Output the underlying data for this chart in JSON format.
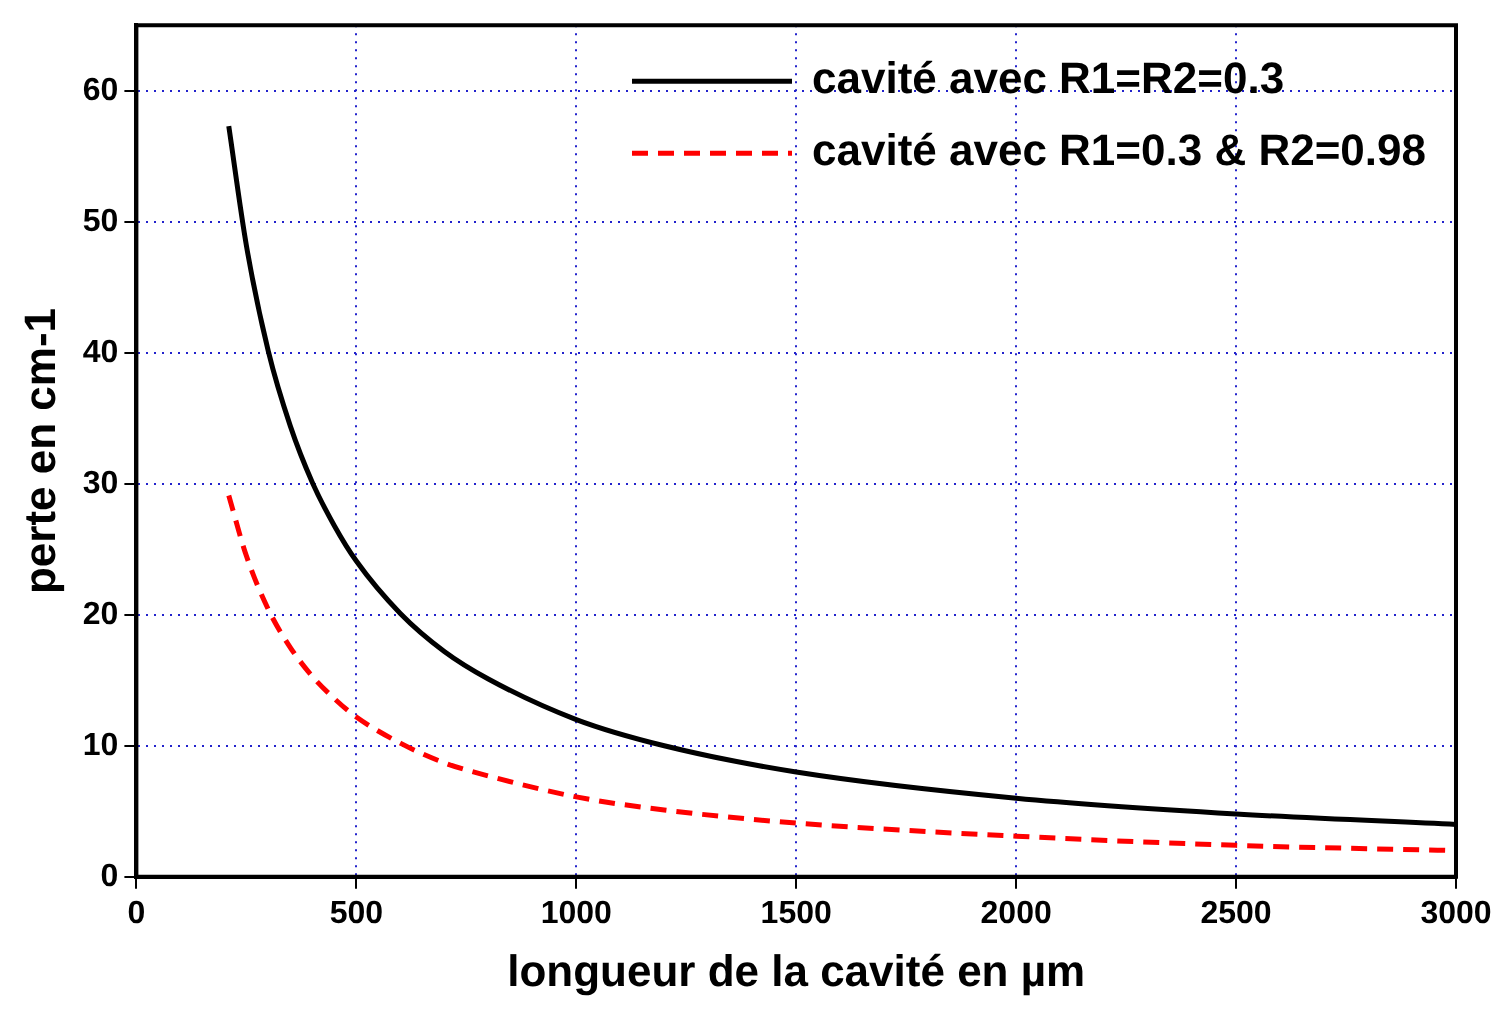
{
  "chart_data": {
    "type": "line",
    "xlabel": "longueur de la cavité en µm",
    "ylabel": "perte en cm-1",
    "x": [
      210,
      250,
      300,
      350,
      400,
      450,
      500,
      600,
      700,
      800,
      1000,
      1200,
      1500,
      2000,
      2500,
      3000
    ],
    "series": [
      {
        "name": "cavité avec R1=R2=0.3",
        "color": "#000000",
        "line_style": "solid",
        "values": [
          57.3,
          48.2,
          40.1,
          34.4,
          30.1,
          26.8,
          24.1,
          20.1,
          17.2,
          15.1,
          12.0,
          10.0,
          8.0,
          6.0,
          4.8,
          4.0
        ]
      },
      {
        "name": "cavité avec R1=0.3 & R2=0.98",
        "color": "#ff0000",
        "line_style": "dashed",
        "values": [
          29.1,
          24.5,
          20.4,
          17.5,
          15.3,
          13.6,
          12.2,
          10.2,
          8.7,
          7.7,
          6.1,
          5.1,
          4.1,
          3.1,
          2.4,
          2.0
        ]
      }
    ],
    "xlim": [
      0,
      3000
    ],
    "xticks": [
      0,
      500,
      1000,
      1500,
      2000,
      2500,
      3000
    ],
    "ylim": [
      0,
      65
    ],
    "yticks": [
      0,
      10,
      20,
      30,
      40,
      50,
      60
    ],
    "grid": true,
    "legend": "top right",
    "marker": "none"
  }
}
